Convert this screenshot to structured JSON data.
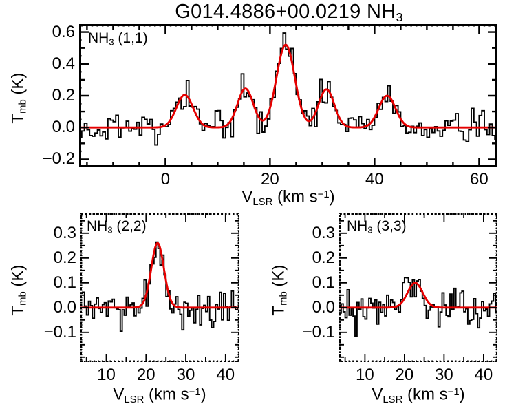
{
  "figure": {
    "title": {
      "pre": "G014.4886+00.0219 NH",
      "sub": "3"
    }
  },
  "chart_data": {
    "type": "line",
    "description": "Three ammonia spectral-line panels: observed histogram spectrum (black) with Gaussian fit (red), brightness temperature vs LSR velocity",
    "colors": {
      "histogram": "#000000",
      "fit": "#e60000",
      "frame": "#000000",
      "background": "#ffffff"
    },
    "xlabel_parts": {
      "pre": "V",
      "sub": "LSR",
      "mid": " (km s",
      "sup": "−1",
      "post": ")"
    },
    "ylabel_parts": {
      "pre": "T",
      "sub": "mb",
      "post": " (K)"
    },
    "panels": [
      {
        "id": "nh3_1_1",
        "label": {
          "pre": "NH",
          "sub": "3",
          "post": " (1,1)"
        },
        "frame": "solid",
        "xlim": [
          -16.5,
          63.5
        ],
        "ylim": [
          -0.25,
          0.65
        ],
        "channel_width": 0.5,
        "xticks": {
          "major": [
            0,
            20,
            40,
            60
          ],
          "labels": [
            "0",
            "20",
            "40",
            "60"
          ],
          "minor_step": 5,
          "tiny_step": 1
        },
        "yticks": {
          "major": [
            -0.2,
            0.0,
            0.2,
            0.4,
            0.6
          ],
          "labels": [
            "−0.2",
            "0.0",
            "0.2",
            "0.4",
            "0.6"
          ],
          "minor_step": 0.1,
          "tiny_step": 0.05
        },
        "fit_components": [
          {
            "center": 3.7,
            "amp": 0.205,
            "sigma": 1.6
          },
          {
            "center": 15.3,
            "amp": 0.245,
            "sigma": 1.5
          },
          {
            "center": 23.0,
            "amp": 0.52,
            "sigma": 1.75
          },
          {
            "center": 30.8,
            "amp": 0.24,
            "sigma": 1.5
          },
          {
            "center": 42.4,
            "amp": 0.2,
            "sigma": 1.6
          }
        ],
        "noise_rms": 0.047,
        "noise_seed": 11
      },
      {
        "id": "nh3_2_2",
        "label": {
          "pre": "NH",
          "sub": "3",
          "post": " (2,2)"
        },
        "frame": "dotted",
        "xlim": [
          3.5,
          43.5
        ],
        "ylim": [
          -0.22,
          0.38
        ],
        "channel_width": 0.5,
        "xticks": {
          "major": [
            10,
            20,
            30,
            40
          ],
          "labels": [
            "10",
            "20",
            "30",
            "40"
          ],
          "minor_step": 5,
          "tiny_step": 1
        },
        "yticks": {
          "major": [
            -0.1,
            0.0,
            0.1,
            0.2,
            0.3
          ],
          "labels": [
            "−0.1",
            "0.0",
            "0.1",
            "0.2",
            "0.3"
          ],
          "minor_step": 0.05,
          "tiny_step": 0.01
        },
        "fit_components": [
          {
            "center": 22.9,
            "amp": 0.26,
            "sigma": 1.6
          }
        ],
        "noise_rms": 0.036,
        "noise_seed": 27
      },
      {
        "id": "nh3_3_3",
        "label": {
          "pre": "NH",
          "sub": "3",
          "post": " (3,3)"
        },
        "frame": "dotted",
        "xlim": [
          3.5,
          43.5
        ],
        "ylim": [
          -0.22,
          0.38
        ],
        "channel_width": 0.5,
        "xticks": {
          "major": [
            10,
            20,
            30,
            40
          ],
          "labels": [
            "10",
            "20",
            "30",
            "40"
          ],
          "minor_step": 5,
          "tiny_step": 1
        },
        "yticks": {
          "major": [
            -0.1,
            0.0,
            0.1,
            0.2,
            0.3
          ],
          "labels": [
            "−0.1",
            "0.0",
            "0.1",
            "0.2",
            "0.3"
          ],
          "minor_step": 0.05,
          "tiny_step": 0.01
        },
        "fit_components": [
          {
            "center": 22.7,
            "amp": 0.1,
            "sigma": 1.9
          }
        ],
        "noise_rms": 0.04,
        "noise_seed": 33
      }
    ]
  }
}
